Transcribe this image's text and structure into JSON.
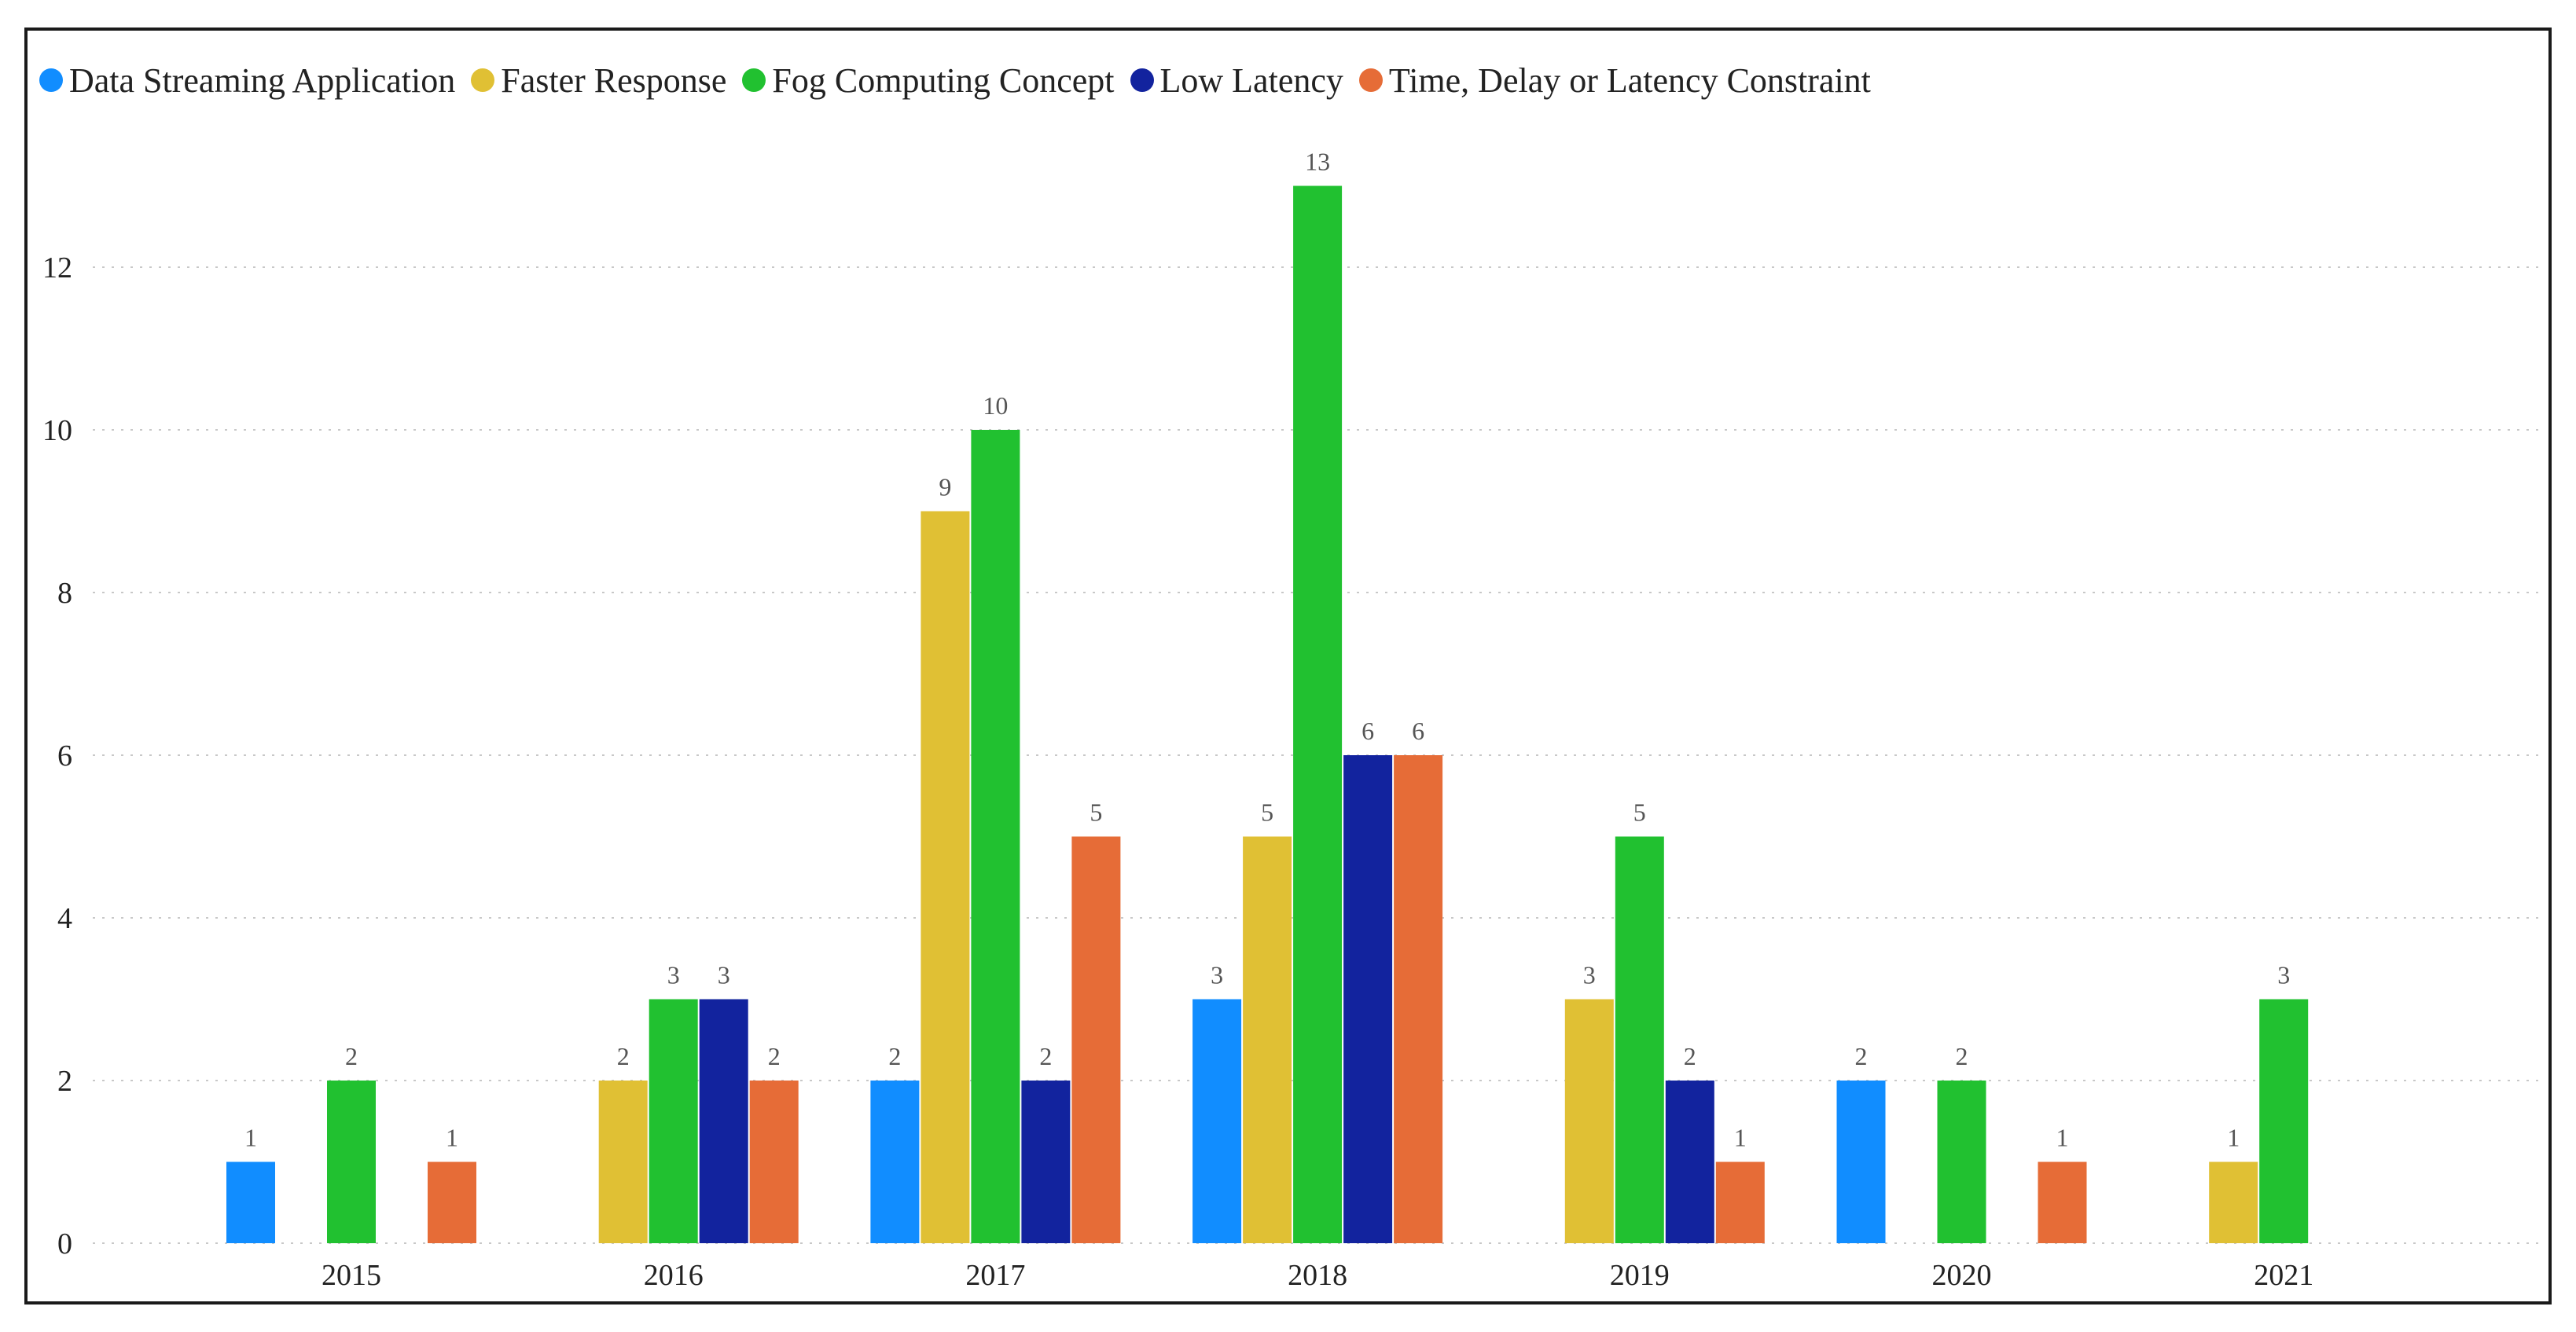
{
  "chart_data": {
    "type": "bar",
    "title": "",
    "xlabel": "",
    "ylabel": "",
    "categories": [
      "2015",
      "2016",
      "2017",
      "2018",
      "2019",
      "2020",
      "2021"
    ],
    "ylim": [
      0,
      13
    ],
    "yticks": [
      0,
      2,
      4,
      6,
      8,
      10,
      12
    ],
    "grid": true,
    "legend_position": "top-left",
    "series": [
      {
        "name": "Data Streaming Application",
        "color": "#118dff",
        "values": [
          1,
          null,
          2,
          3,
          null,
          2,
          null
        ]
      },
      {
        "name": "Faster Response",
        "color": "#e0c034",
        "values": [
          null,
          2,
          9,
          5,
          3,
          null,
          1
        ]
      },
      {
        "name": "Fog Computing Concept",
        "color": "#21c130",
        "values": [
          2,
          3,
          10,
          13,
          5,
          2,
          3
        ]
      },
      {
        "name": "Low Latency",
        "color": "#12239e",
        "values": [
          null,
          3,
          2,
          6,
          2,
          null,
          null
        ]
      },
      {
        "name": "Time, Delay or Latency Constraint",
        "color": "#e66c37",
        "values": [
          1,
          2,
          5,
          6,
          1,
          1,
          null
        ]
      }
    ]
  }
}
